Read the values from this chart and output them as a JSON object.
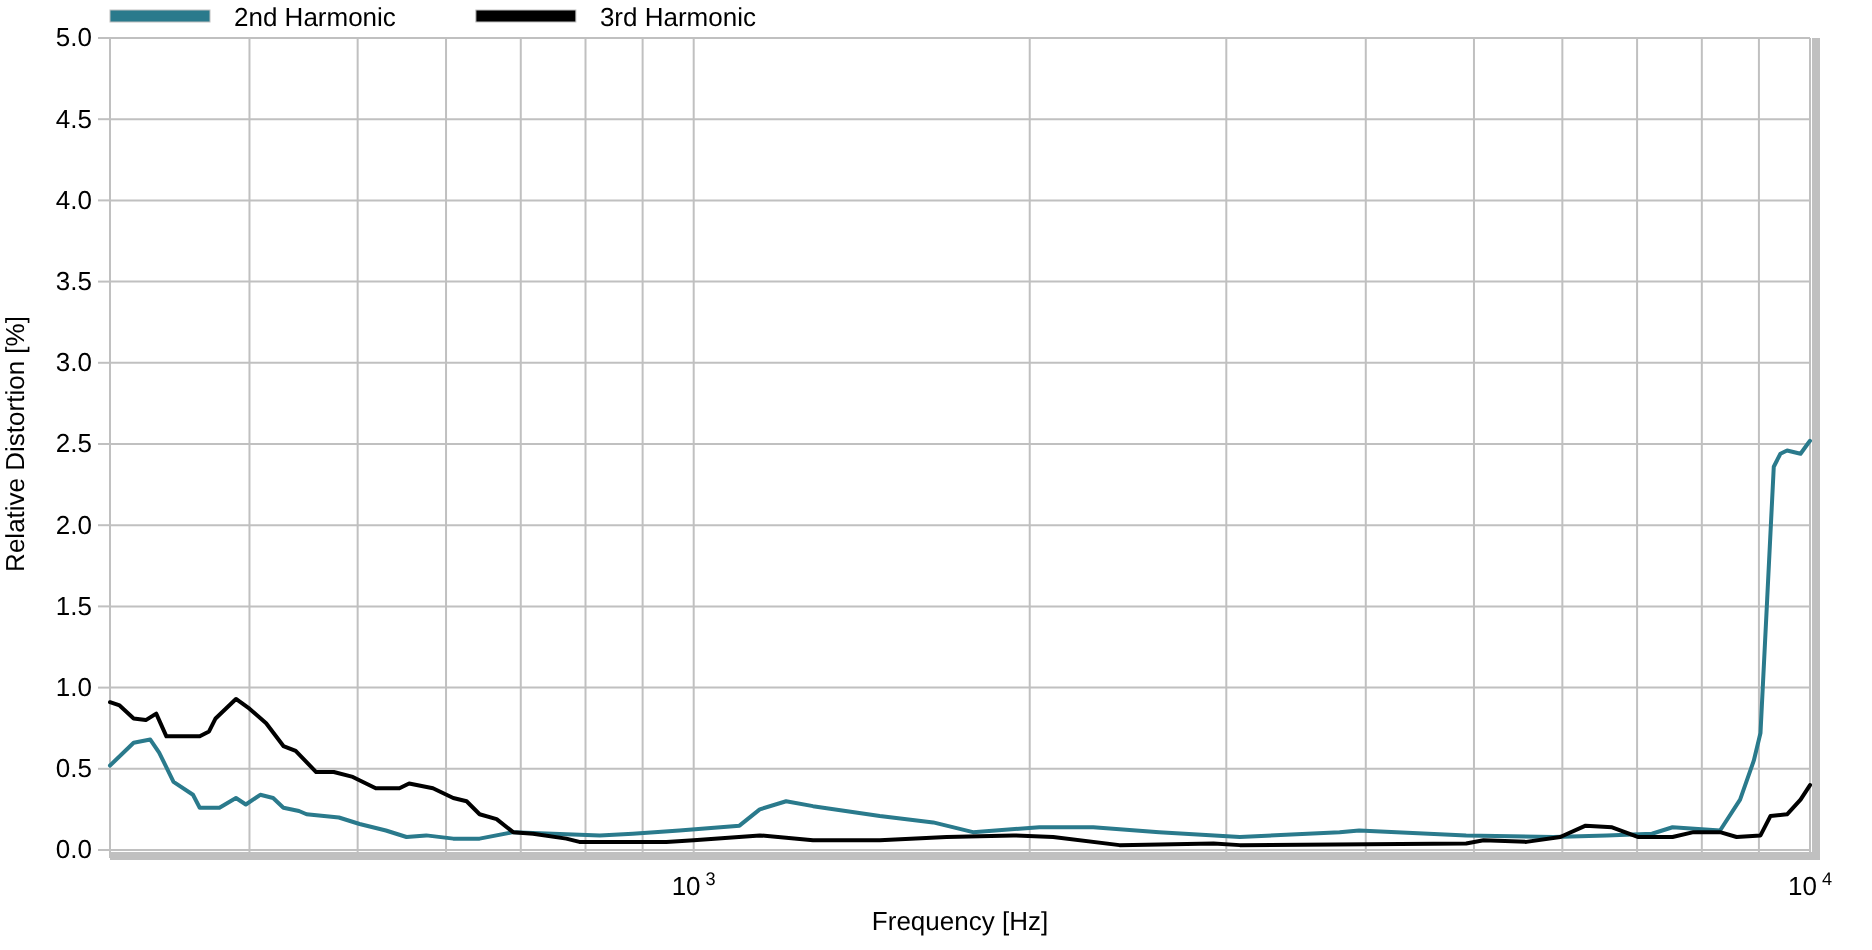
{
  "chart_data": {
    "type": "line",
    "xlabel": "Frequency  [Hz]",
    "ylabel": "Relative Distortion  [%]",
    "log": "x",
    "grid": true,
    "legend": "top left",
    "line_style": "solid",
    "marker": "none",
    "xlim": [
      300,
      10000
    ],
    "ylim": [
      0,
      5
    ],
    "xticks": [
      {
        "value": 400,
        "label": null
      },
      {
        "value": 500,
        "label": null
      },
      {
        "value": 600,
        "label": null
      },
      {
        "value": 700,
        "label": null
      },
      {
        "value": 800,
        "label": null
      },
      {
        "value": 900,
        "label": null
      },
      {
        "value": 1000,
        "label": "10$^{3}$"
      },
      {
        "value": 2000,
        "label": null
      },
      {
        "value": 3000,
        "label": null
      },
      {
        "value": 4000,
        "label": null
      },
      {
        "value": 5000,
        "label": null
      },
      {
        "value": 6000,
        "label": null
      },
      {
        "value": 7000,
        "label": null
      },
      {
        "value": 8000,
        "label": null
      },
      {
        "value": 9000,
        "label": null
      },
      {
        "value": 10000,
        "label": "10$^{4}$"
      }
    ],
    "yticks": [
      {
        "value": 0,
        "label": "0.0"
      },
      {
        "value": 0.5,
        "label": "0.5"
      },
      {
        "value": 1,
        "label": "1.0"
      },
      {
        "value": 1.5,
        "label": "1.5"
      },
      {
        "value": 2,
        "label": "2.0"
      },
      {
        "value": 2.5,
        "label": "2.5"
      },
      {
        "value": 3,
        "label": "3.0"
      },
      {
        "value": 3.5,
        "label": "3.5"
      },
      {
        "value": 4,
        "label": "4.0"
      },
      {
        "value": 4.5,
        "label": "4.5"
      },
      {
        "value": 5,
        "label": "5.0"
      }
    ],
    "series": [
      {
        "name": "2nd Harmonic",
        "color": "#2a7a8c",
        "x": [
          300,
          315,
          326,
          332,
          342,
          356,
          361,
          376,
          389,
          397,
          409,
          420,
          429,
          443,
          450,
          481,
          502,
          530,
          553,
          576,
          609,
          643,
          689,
          748,
          824,
          882,
          971,
          1099,
          1146,
          1210,
          1279,
          1468,
          1639,
          1779,
          2040,
          2280,
          2612,
          3085,
          3790,
          3946,
          4920,
          5888,
          6578,
          7218,
          7531,
          8307,
          8657,
          8905,
          9029,
          9154,
          9280,
          9408,
          9538,
          9807,
          9950,
          10000
        ],
        "values": [
          0.52,
          0.66,
          0.68,
          0.6,
          0.42,
          0.34,
          0.26,
          0.26,
          0.32,
          0.28,
          0.34,
          0.32,
          0.26,
          0.24,
          0.22,
          0.2,
          0.16,
          0.12,
          0.08,
          0.09,
          0.07,
          0.07,
          0.11,
          0.1,
          0.09,
          0.1,
          0.12,
          0.15,
          0.25,
          0.3,
          0.27,
          0.21,
          0.17,
          0.11,
          0.14,
          0.14,
          0.11,
          0.08,
          0.11,
          0.12,
          0.09,
          0.08,
          0.09,
          0.1,
          0.14,
          0.12,
          0.31,
          0.55,
          0.72,
          1.54,
          2.36,
          2.44,
          2.46,
          2.44,
          2.5,
          2.52
        ]
      },
      {
        "name": "3rd Harmonic",
        "color": "#000000",
        "x": [
          300,
          306,
          315,
          323,
          330,
          337,
          361,
          368,
          373,
          389,
          400,
          414,
          429,
          440,
          459,
          476,
          495,
          519,
          545,
          556,
          584,
          609,
          626,
          643,
          666,
          689,
          718,
          769,
          790,
          945,
          1000,
          1146,
          1279,
          1468,
          1685,
          1933,
          2099,
          2407,
          2922,
          3085,
          4920,
          5100,
          5569,
          5974,
          6295,
          6648,
          7019,
          7531,
          7864,
          8307,
          8595,
          9029,
          9218,
          9538,
          9807,
          10000
        ],
        "values": [
          0.91,
          0.89,
          0.81,
          0.8,
          0.84,
          0.7,
          0.7,
          0.73,
          0.81,
          0.93,
          0.87,
          0.78,
          0.64,
          0.61,
          0.48,
          0.48,
          0.45,
          0.38,
          0.38,
          0.41,
          0.38,
          0.32,
          0.3,
          0.22,
          0.19,
          0.11,
          0.1,
          0.07,
          0.05,
          0.05,
          0.06,
          0.09,
          0.06,
          0.06,
          0.08,
          0.09,
          0.08,
          0.03,
          0.04,
          0.03,
          0.04,
          0.06,
          0.05,
          0.08,
          0.15,
          0.14,
          0.08,
          0.08,
          0.11,
          0.11,
          0.08,
          0.09,
          0.21,
          0.22,
          0.31,
          0.4
        ]
      }
    ]
  }
}
